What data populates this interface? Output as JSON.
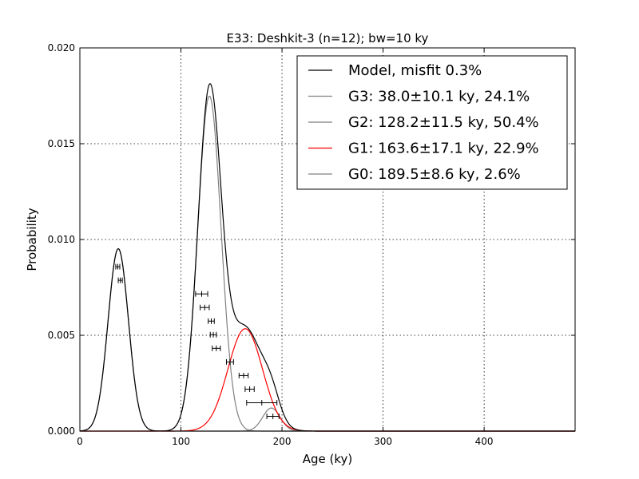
{
  "chart_data": {
    "type": "line",
    "title": "E33: Deshkit-3 (n=12); bw=10 ky",
    "xlabel": "Age (ky)",
    "ylabel": "Probability",
    "xlim": [
      0,
      490
    ],
    "ylim": [
      0,
      0.02
    ],
    "xticks": [
      0,
      100,
      200,
      300,
      400
    ],
    "xtick_labels": [
      "0",
      "100",
      "200",
      "300",
      "400"
    ],
    "yticks": [
      0,
      0.005,
      0.01,
      0.015,
      0.02
    ],
    "ytick_labels": [
      "0.000",
      "0.005",
      "0.010",
      "0.015",
      "0.020"
    ],
    "grid": true,
    "legend_position": "top-right",
    "series": [
      {
        "name": "Model, misfit 0.3%",
        "color": "#000000",
        "kind": "model"
      },
      {
        "name": "G3: 38.0±10.1 ky, 24.1%",
        "color": "#808080",
        "mean": 38.0,
        "sigma": 10.1,
        "weight": 0.241
      },
      {
        "name": "G2: 128.2±11.5 ky, 50.4%",
        "color": "#808080",
        "mean": 128.2,
        "sigma": 11.5,
        "weight": 0.504
      },
      {
        "name": "G1: 163.6±17.1 ky, 22.9%",
        "color": "#ff0000",
        "mean": 163.6,
        "sigma": 17.1,
        "weight": 0.229
      },
      {
        "name": "G0: 189.5±8.6 ky, 2.6%",
        "color": "#808080",
        "mean": 189.5,
        "sigma": 8.6,
        "weight": 0.026
      }
    ],
    "samples": [
      {
        "age": 37.5,
        "err": 2.0,
        "y": 0.00858
      },
      {
        "age": 40.0,
        "err": 2.0,
        "y": 0.00787
      },
      {
        "age": 120.5,
        "err": 6.0,
        "y": 0.00716
      },
      {
        "age": 123.5,
        "err": 4.5,
        "y": 0.00645
      },
      {
        "age": 130.0,
        "err": 3.0,
        "y": 0.00574
      },
      {
        "age": 132.0,
        "err": 3.0,
        "y": 0.00503
      },
      {
        "age": 135.0,
        "err": 4.0,
        "y": 0.00432
      },
      {
        "age": 148.5,
        "err": 3.5,
        "y": 0.00361
      },
      {
        "age": 162.0,
        "err": 4.5,
        "y": 0.0029
      },
      {
        "age": 168.0,
        "err": 4.5,
        "y": 0.00219
      },
      {
        "age": 180.0,
        "err": 15.0,
        "y": 0.00148
      },
      {
        "age": 191.0,
        "err": 6.0,
        "y": 0.00077
      }
    ]
  }
}
